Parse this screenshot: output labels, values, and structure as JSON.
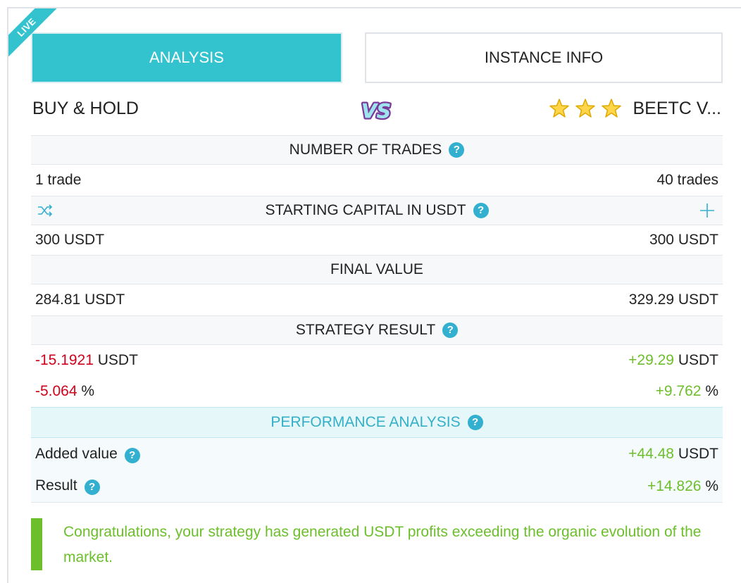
{
  "ribbon": {
    "label": "LIVE"
  },
  "tabs": {
    "analysis": "ANALYSIS",
    "instance_info": "INSTANCE INFO"
  },
  "compare": {
    "left": "BUY & HOLD",
    "vs": "VS",
    "right": "BEETC V...",
    "stars": 3
  },
  "sections": {
    "trades": {
      "title": "NUMBER OF TRADES",
      "left": "1 trade",
      "right": "40 trades"
    },
    "capital": {
      "title": "STARTING CAPITAL IN USDT",
      "left": "300 USDT",
      "right": "300 USDT"
    },
    "final": {
      "title": "FINAL VALUE",
      "left": "284.81 USDT",
      "right": "329.29 USDT"
    },
    "result": {
      "title": "STRATEGY RESULT",
      "left_value": "-15.1921",
      "left_unit": "USDT",
      "right_value": "+29.29",
      "right_unit": "USDT",
      "left_pct": "-5.064",
      "right_pct": "+9.762",
      "pct_unit": "%"
    }
  },
  "performance": {
    "title": "PERFORMANCE ANALYSIS",
    "added_label": "Added value",
    "added_value": "+44.48",
    "added_unit": "USDT",
    "result_label": "Result",
    "result_value": "+14.826",
    "result_unit": "%"
  },
  "help_glyph": "?",
  "message": "Congratulations, your strategy has generated USDT profits exceeding the organic evolution of the market.",
  "colors": {
    "accent": "#33c3cf",
    "negative": "#d0021b",
    "positive": "#6cbf2a",
    "help": "#33b0cf"
  }
}
